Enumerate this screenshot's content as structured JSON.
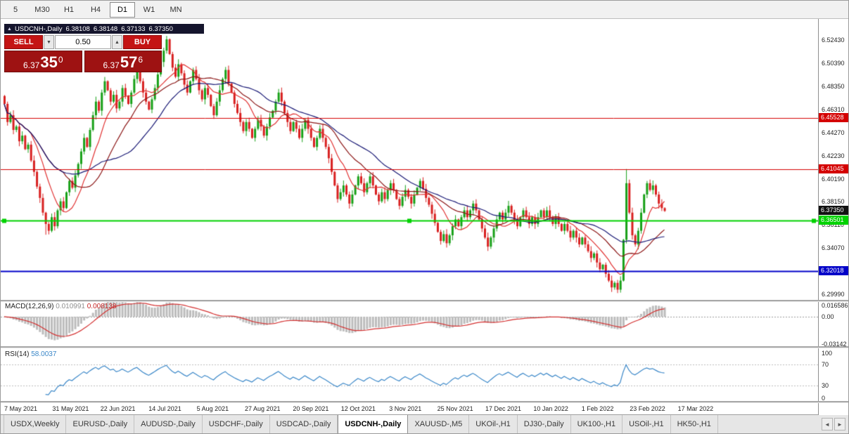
{
  "toolbar": {
    "timeframes": [
      {
        "label": "5",
        "active": false
      },
      {
        "label": "M30",
        "active": false
      },
      {
        "label": "H1",
        "active": false
      },
      {
        "label": "H4",
        "active": false
      },
      {
        "label": "D1",
        "active": true
      },
      {
        "label": "W1",
        "active": false
      },
      {
        "label": "MN",
        "active": false
      }
    ]
  },
  "chart_header": {
    "collapse_icon": "▲",
    "title": "USDCNH-,Daily",
    "ohlc": {
      "open": "6.38108",
      "high": "6.38148",
      "low": "6.37133",
      "close": "6.37350"
    }
  },
  "trade_panel": {
    "sell_label": "SELL",
    "buy_label": "BUY",
    "volume": "0.50",
    "dropdown_icon": "▼",
    "up_icon": "▲",
    "bid": {
      "base": "6.37",
      "big": "35",
      "sup": "0"
    },
    "ask": {
      "base": "6.37",
      "big": "57",
      "sup": "6"
    }
  },
  "indicator_labels": {
    "macd_name": "MACD(12,26,9)",
    "macd_main": "0.010991",
    "macd_signal": "0.008138",
    "rsi_name": "RSI(14)",
    "rsi_value": "58.0037"
  },
  "price_axis": {
    "ticks": [
      "6.52430",
      "6.50390",
      "6.48350",
      "6.46310",
      "6.44270",
      "6.42230",
      "6.40190",
      "6.38150",
      "6.36110",
      "6.34070",
      "6.32030",
      "6.29990"
    ]
  },
  "chart_data": {
    "type": "candlestick",
    "symbol": "USDCNH-",
    "timeframe": "Daily",
    "title": "USDCNH-,Daily",
    "ylim": [
      6.295,
      6.5405
    ],
    "x_labels": [
      "7 May 2021",
      "31 May 2021",
      "22 Jun 2021",
      "14 Jul 2021",
      "5 Aug 2021",
      "27 Aug 2021",
      "20 Sep 2021",
      "12 Oct 2021",
      "3 Nov 2021",
      "25 Nov 2021",
      "17 Dec 2021",
      "10 Jan 2022",
      "1 Feb 2022",
      "23 Feb 2022",
      "17 Mar 2022"
    ],
    "first_open": 6.475,
    "closes": [
      6.468,
      6.452,
      6.458,
      6.445,
      6.448,
      6.435,
      6.44,
      6.428,
      6.432,
      6.418,
      6.408,
      6.395,
      6.385,
      6.372,
      6.362,
      6.356,
      6.368,
      6.36,
      6.374,
      6.382,
      6.376,
      6.39,
      6.4,
      6.394,
      6.405,
      6.415,
      6.426,
      6.438,
      6.43,
      6.445,
      6.458,
      6.47,
      6.462,
      6.478,
      6.488,
      6.48,
      6.47,
      6.476,
      6.464,
      6.47,
      6.482,
      6.475,
      6.468,
      6.478,
      6.49,
      6.498,
      6.488,
      6.478,
      6.47,
      6.463,
      6.472,
      6.482,
      6.494,
      6.505,
      6.515,
      6.525,
      6.512,
      6.5,
      6.492,
      6.503,
      6.495,
      6.485,
      6.478,
      6.488,
      6.498,
      6.49,
      6.48,
      6.472,
      6.482,
      6.476,
      6.466,
      6.458,
      6.47,
      6.48,
      6.49,
      6.498,
      6.486,
      6.478,
      6.468,
      6.46,
      6.452,
      6.444,
      6.452,
      6.446,
      6.438,
      6.446,
      6.454,
      6.448,
      6.44,
      6.448,
      6.456,
      6.462,
      6.47,
      6.478,
      6.47,
      6.46,
      6.452,
      6.444,
      6.452,
      6.446,
      6.438,
      6.446,
      6.454,
      6.446,
      6.438,
      6.43,
      6.438,
      6.446,
      6.438,
      6.43,
      6.42,
      6.408,
      6.396,
      6.384,
      6.39,
      6.396,
      6.388,
      6.38,
      6.388,
      6.396,
      6.404,
      6.398,
      6.39,
      6.398,
      6.404,
      6.396,
      6.388,
      6.382,
      6.39,
      6.384,
      6.392,
      6.398,
      6.392,
      6.384,
      6.378,
      6.386,
      6.392,
      6.386,
      6.38,
      6.388,
      6.394,
      6.4,
      6.393,
      6.385,
      6.379,
      6.371,
      6.363,
      6.355,
      6.347,
      6.353,
      6.345,
      6.352,
      6.36,
      6.366,
      6.36,
      6.368,
      6.374,
      6.368,
      6.374,
      6.38,
      6.374,
      6.366,
      6.358,
      6.35,
      6.342,
      6.35,
      6.358,
      6.366,
      6.372,
      6.366,
      6.372,
      6.378,
      6.372,
      6.366,
      6.36,
      6.368,
      6.374,
      6.368,
      6.362,
      6.368,
      6.362,
      6.368,
      6.374,
      6.368,
      6.374,
      6.368,
      6.362,
      6.368,
      6.362,
      6.356,
      6.362,
      6.356,
      6.35,
      6.356,
      6.35,
      6.344,
      6.35,
      6.344,
      6.338,
      6.332,
      6.336,
      6.328,
      6.322,
      6.326,
      6.318,
      6.312,
      6.306,
      6.31,
      6.304,
      6.312,
      6.348,
      6.398,
      6.372,
      6.352,
      6.344,
      6.356,
      6.372,
      6.388,
      6.398,
      6.392,
      6.396,
      6.388,
      6.38,
      6.376,
      6.3735
    ],
    "wick_overrides": {
      "14": {
        "low": 6.3525
      },
      "55": {
        "high": 6.528
      },
      "206": {
        "low": 6.302
      },
      "208": {
        "low": 6.301
      },
      "211": {
        "high": 6.4105
      }
    },
    "colors": {
      "up": "#17a017",
      "down": "#d81f1f",
      "ma_fast": "#e03131",
      "ma_mid": "#8b1515",
      "ma_slow": "#191975",
      "macd_hist": "#bcbcbc",
      "macd_signal": "#d32f2f",
      "rsi": "#3a87c8"
    },
    "moving_averages": [
      {
        "period": 10,
        "color": "#e03131"
      },
      {
        "period": 21,
        "color": "#8b1515"
      },
      {
        "period": 34,
        "color": "#191975"
      }
    ],
    "levels": [
      {
        "price": 6.45528,
        "label": "6.45528",
        "color": "#d40000",
        "width": 1,
        "selected": false
      },
      {
        "price": 6.41045,
        "label": "6.41045",
        "color": "#d40000",
        "width": 1,
        "selected": false
      },
      {
        "price": 6.36501,
        "label": "6.36501",
        "color": "#00d200",
        "width": 2,
        "selected": true
      },
      {
        "price": 6.32018,
        "label": "6.32018",
        "color": "#0000c8",
        "width": 2,
        "selected": false
      }
    ],
    "current_price": {
      "value": 6.3735,
      "label": "6.37350",
      "bg": "#111111"
    },
    "macd": {
      "fast": 12,
      "slow": 26,
      "signal": 9,
      "main_value": 0.010991,
      "signal_value": 0.008138,
      "range": [
        -0.0335,
        0.0175
      ],
      "axis_labels": [
        "0.016586",
        "0.00",
        "-0.03142"
      ]
    },
    "rsi": {
      "period": 14,
      "value": 58.0037,
      "levels": [
        70,
        30
      ],
      "axis_labels": [
        "100",
        "70",
        "30",
        "0"
      ]
    }
  },
  "tabbar": {
    "tabs": [
      {
        "label": "USDX,Weekly",
        "active": false
      },
      {
        "label": "EURUSD-,Daily",
        "active": false
      },
      {
        "label": "AUDUSD-,Daily",
        "active": false
      },
      {
        "label": "USDCHF-,Daily",
        "active": false
      },
      {
        "label": "USDCAD-,Daily",
        "active": false
      },
      {
        "label": "USDCNH-,Daily",
        "active": true
      },
      {
        "label": "XAUUSD-,M5",
        "active": false
      },
      {
        "label": "UKOil-,H1",
        "active": false
      },
      {
        "label": "DJ30-,Daily",
        "active": false
      },
      {
        "label": "UK100-,H1",
        "active": false
      },
      {
        "label": "USOil-,H1",
        "active": false
      },
      {
        "label": "HK50-,H1",
        "active": false
      }
    ],
    "scroll_left": "◄",
    "scroll_right": "►"
  }
}
